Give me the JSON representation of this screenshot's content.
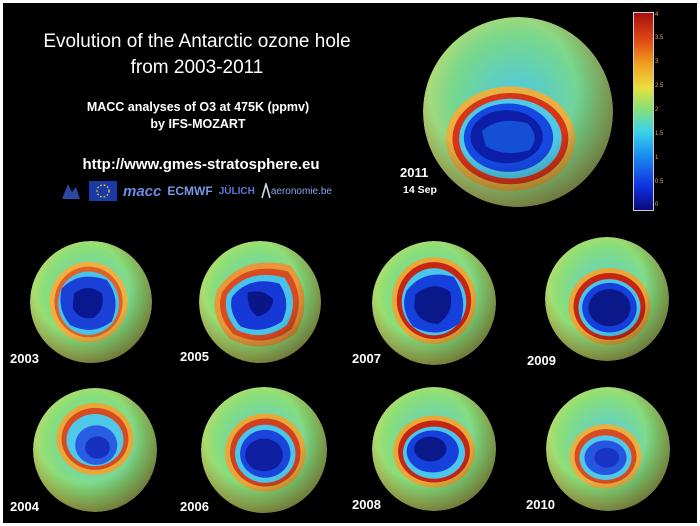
{
  "title_lines": [
    "Evolution of the Antarctic ozone hole",
    "from 2003-2011"
  ],
  "subtitle_lines": [
    "MACC analyses of O3 at 475K (ppmv)",
    "by IFS-MOZART"
  ],
  "url": "http://www.gmes-stratosphere.eu",
  "logos": [
    "macc",
    "ECMWF",
    "JÜLICH",
    "aeronomie.be"
  ],
  "featured": {
    "year": "2011",
    "date": "14 Sep"
  },
  "years": [
    "2003",
    "2004",
    "2005",
    "2006",
    "2007",
    "2008",
    "2009",
    "2010"
  ],
  "colorbar": {
    "ticks": [
      "4",
      "3.5",
      "3",
      "2.5",
      "2",
      "1.5",
      "1",
      "0.5",
      "0"
    ],
    "min": 0,
    "max": 4,
    "colors": [
      "#0a0a7a",
      "#1030e0",
      "#1c8ef0",
      "#3cd4e8",
      "#8ce070",
      "#e8e040",
      "#f0a020",
      "#e04a14",
      "#a81010"
    ]
  }
}
